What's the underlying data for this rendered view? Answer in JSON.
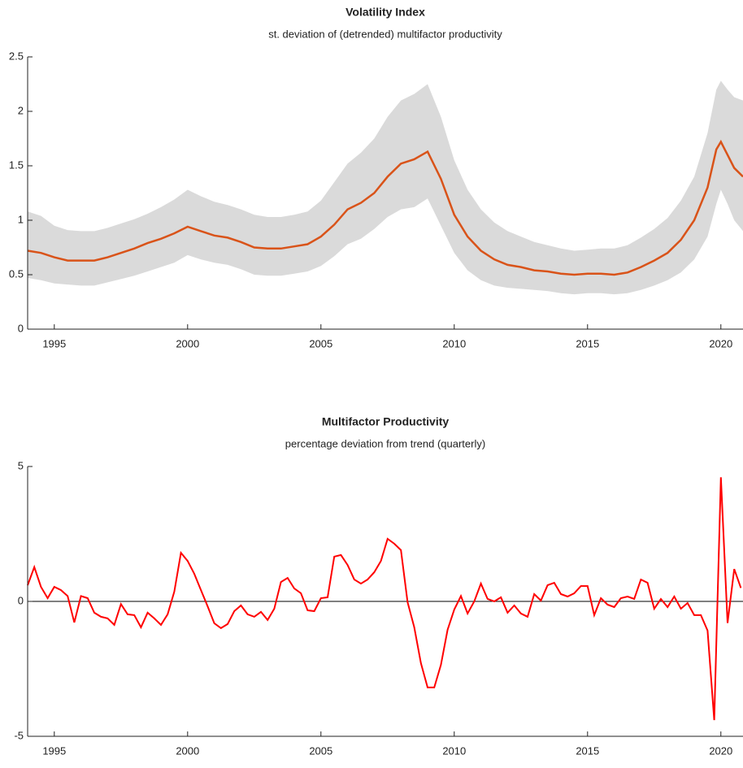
{
  "chart_data": [
    {
      "type": "band-line",
      "title": "Volatility Index",
      "subtitle": "st. deviation of (detrended) multifactor productivity",
      "x": [
        1994,
        1994.5,
        1995,
        1995.5,
        1996,
        1996.5,
        1997,
        1997.5,
        1998,
        1998.5,
        1999,
        1999.5,
        2000,
        2000.5,
        2001,
        2001.5,
        2002,
        2002.5,
        2003,
        2003.5,
        2004,
        2004.5,
        2005,
        2005.5,
        2006,
        2006.5,
        2007,
        2007.5,
        2008,
        2008.5,
        2009,
        2009.5,
        2010,
        2010.5,
        2011,
        2011.5,
        2012,
        2012.5,
        2013,
        2013.5,
        2014,
        2014.5,
        2015,
        2015.5,
        2016,
        2016.5,
        2017,
        2017.5,
        2018,
        2018.5,
        2019,
        2019.5,
        2019.83,
        2020,
        2020.25,
        2020.5,
        2020.83
      ],
      "values": [
        0.72,
        0.7,
        0.66,
        0.63,
        0.63,
        0.63,
        0.66,
        0.7,
        0.74,
        0.79,
        0.83,
        0.88,
        0.94,
        0.9,
        0.86,
        0.84,
        0.8,
        0.75,
        0.74,
        0.74,
        0.76,
        0.78,
        0.85,
        0.96,
        1.1,
        1.16,
        1.25,
        1.4,
        1.52,
        1.56,
        1.63,
        1.38,
        1.05,
        0.85,
        0.72,
        0.64,
        0.59,
        0.57,
        0.54,
        0.53,
        0.51,
        0.5,
        0.51,
        0.51,
        0.5,
        0.52,
        0.57,
        0.63,
        0.7,
        0.82,
        1.0,
        1.3,
        1.65,
        1.72,
        1.6,
        1.48,
        1.4
      ],
      "band_lower": [
        0.47,
        0.45,
        0.42,
        0.41,
        0.4,
        0.4,
        0.43,
        0.46,
        0.49,
        0.53,
        0.57,
        0.61,
        0.68,
        0.64,
        0.61,
        0.59,
        0.55,
        0.5,
        0.49,
        0.49,
        0.51,
        0.53,
        0.58,
        0.67,
        0.78,
        0.83,
        0.92,
        1.03,
        1.1,
        1.12,
        1.2,
        0.95,
        0.7,
        0.54,
        0.45,
        0.4,
        0.38,
        0.37,
        0.36,
        0.35,
        0.33,
        0.32,
        0.33,
        0.33,
        0.32,
        0.33,
        0.36,
        0.4,
        0.45,
        0.52,
        0.64,
        0.85,
        1.15,
        1.28,
        1.15,
        1.0,
        0.9
      ],
      "band_upper": [
        1.08,
        1.04,
        0.95,
        0.91,
        0.9,
        0.9,
        0.93,
        0.97,
        1.01,
        1.06,
        1.12,
        1.19,
        1.28,
        1.22,
        1.17,
        1.14,
        1.1,
        1.05,
        1.03,
        1.03,
        1.05,
        1.08,
        1.18,
        1.35,
        1.52,
        1.62,
        1.75,
        1.95,
        2.1,
        2.16,
        2.25,
        1.95,
        1.55,
        1.28,
        1.1,
        0.98,
        0.9,
        0.85,
        0.8,
        0.77,
        0.74,
        0.72,
        0.73,
        0.74,
        0.74,
        0.77,
        0.84,
        0.92,
        1.02,
        1.18,
        1.4,
        1.8,
        2.2,
        2.28,
        2.2,
        2.13,
        2.1
      ],
      "color": "#d95319",
      "band_color": "#dadada",
      "xlim": [
        1994,
        2020.83
      ],
      "xticks": [
        1995,
        2000,
        2005,
        2010,
        2015,
        2020
      ],
      "ylim": [
        0,
        2.5
      ],
      "yticks": [
        0,
        0.5,
        1,
        1.5,
        2,
        2.5
      ],
      "grid": false,
      "zero_line": false
    },
    {
      "type": "line",
      "title": "Multifactor Productivity",
      "subtitle": "percentage deviation from trend (quarterly)",
      "x": [
        1994,
        1994.25,
        1994.5,
        1994.75,
        1995,
        1995.25,
        1995.5,
        1995.75,
        1996,
        1996.25,
        1996.5,
        1996.75,
        1997,
        1997.25,
        1997.5,
        1997.75,
        1998,
        1998.25,
        1998.5,
        1998.75,
        1999,
        1999.25,
        1999.5,
        1999.75,
        2000,
        2000.25,
        2000.5,
        2000.75,
        2001,
        2001.25,
        2001.5,
        2001.75,
        2002,
        2002.25,
        2002.5,
        2002.75,
        2003,
        2003.25,
        2003.5,
        2003.75,
        2004,
        2004.25,
        2004.5,
        2004.75,
        2005,
        2005.25,
        2005.5,
        2005.75,
        2006,
        2006.25,
        2006.5,
        2006.75,
        2007,
        2007.25,
        2007.5,
        2007.75,
        2008,
        2008.25,
        2008.5,
        2008.75,
        2009,
        2009.25,
        2009.5,
        2009.75,
        2010,
        2010.25,
        2010.5,
        2010.75,
        2011,
        2011.25,
        2011.5,
        2011.75,
        2012,
        2012.25,
        2012.5,
        2012.75,
        2013,
        2013.25,
        2013.5,
        2013.75,
        2014,
        2014.25,
        2014.5,
        2014.75,
        2015,
        2015.25,
        2015.5,
        2015.75,
        2016,
        2016.25,
        2016.5,
        2016.75,
        2017,
        2017.25,
        2017.5,
        2017.75,
        2018,
        2018.25,
        2018.5,
        2018.75,
        2019,
        2019.25,
        2019.5,
        2019.75,
        2020,
        2020.25,
        2020.5,
        2020.75
      ],
      "values": [
        0.6,
        1.27,
        0.54,
        0.12,
        0.54,
        0.42,
        0.2,
        -0.78,
        0.2,
        0.12,
        -0.42,
        -0.57,
        -0.63,
        -0.87,
        -0.1,
        -0.48,
        -0.51,
        -0.96,
        -0.42,
        -0.63,
        -0.87,
        -0.48,
        0.36,
        1.8,
        1.5,
        1.02,
        0.42,
        -0.18,
        -0.81,
        -0.99,
        -0.84,
        -0.36,
        -0.15,
        -0.48,
        -0.57,
        -0.39,
        -0.69,
        -0.27,
        0.72,
        0.87,
        0.48,
        0.3,
        -0.33,
        -0.36,
        0.12,
        0.15,
        1.66,
        1.72,
        1.35,
        0.81,
        0.66,
        0.81,
        1.08,
        1.5,
        2.32,
        2.14,
        1.9,
        -0.03,
        -0.96,
        -2.29,
        -3.19,
        -3.19,
        -2.35,
        -1.05,
        -0.3,
        0.2,
        -0.45,
        0,
        0.66,
        0.09,
        0,
        0.15,
        -0.42,
        -0.15,
        -0.45,
        -0.57,
        0.27,
        0.03,
        0.6,
        0.69,
        0.27,
        0.18,
        0.3,
        0.57,
        0.57,
        -0.51,
        0.12,
        -0.12,
        -0.21,
        0.12,
        0.18,
        0.09,
        0.81,
        0.69,
        -0.27,
        0.09,
        -0.21,
        0.18,
        -0.27,
        -0.06,
        -0.51,
        -0.51,
        -1.08,
        -4.4,
        4.6,
        -0.8,
        1.2,
        0.5
      ],
      "color": "#ff0000",
      "xlim": [
        1994,
        2020.83
      ],
      "xticks": [
        1995,
        2000,
        2005,
        2010,
        2015,
        2020
      ],
      "ylim": [
        -5,
        5
      ],
      "yticks": [
        -5,
        0,
        5
      ],
      "grid": false,
      "zero_line": true
    }
  ]
}
